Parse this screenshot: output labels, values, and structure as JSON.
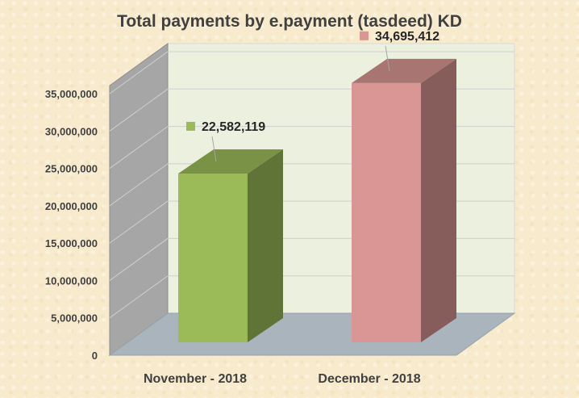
{
  "chart_data": {
    "type": "bar",
    "title": "Total payments  by e.payment (tasdeed) KD",
    "categories": [
      "November - 2018",
      "December - 2018"
    ],
    "values": [
      22582119,
      34695412
    ],
    "value_labels": [
      "22,582,119",
      "34,695,412"
    ],
    "colors": [
      "#9bbb59",
      "#d99694"
    ],
    "ylim": [
      0,
      35000000
    ],
    "yticks": [
      0,
      5000000,
      10000000,
      15000000,
      20000000,
      25000000,
      30000000,
      35000000
    ],
    "ytick_labels": [
      "0",
      "5,000,000",
      "10,000,000",
      "15,000,000",
      "20,000,000",
      "25,000,000",
      "30,000,000",
      "35,000,000"
    ],
    "grid": true,
    "legend": "none",
    "style": "3d-column"
  }
}
